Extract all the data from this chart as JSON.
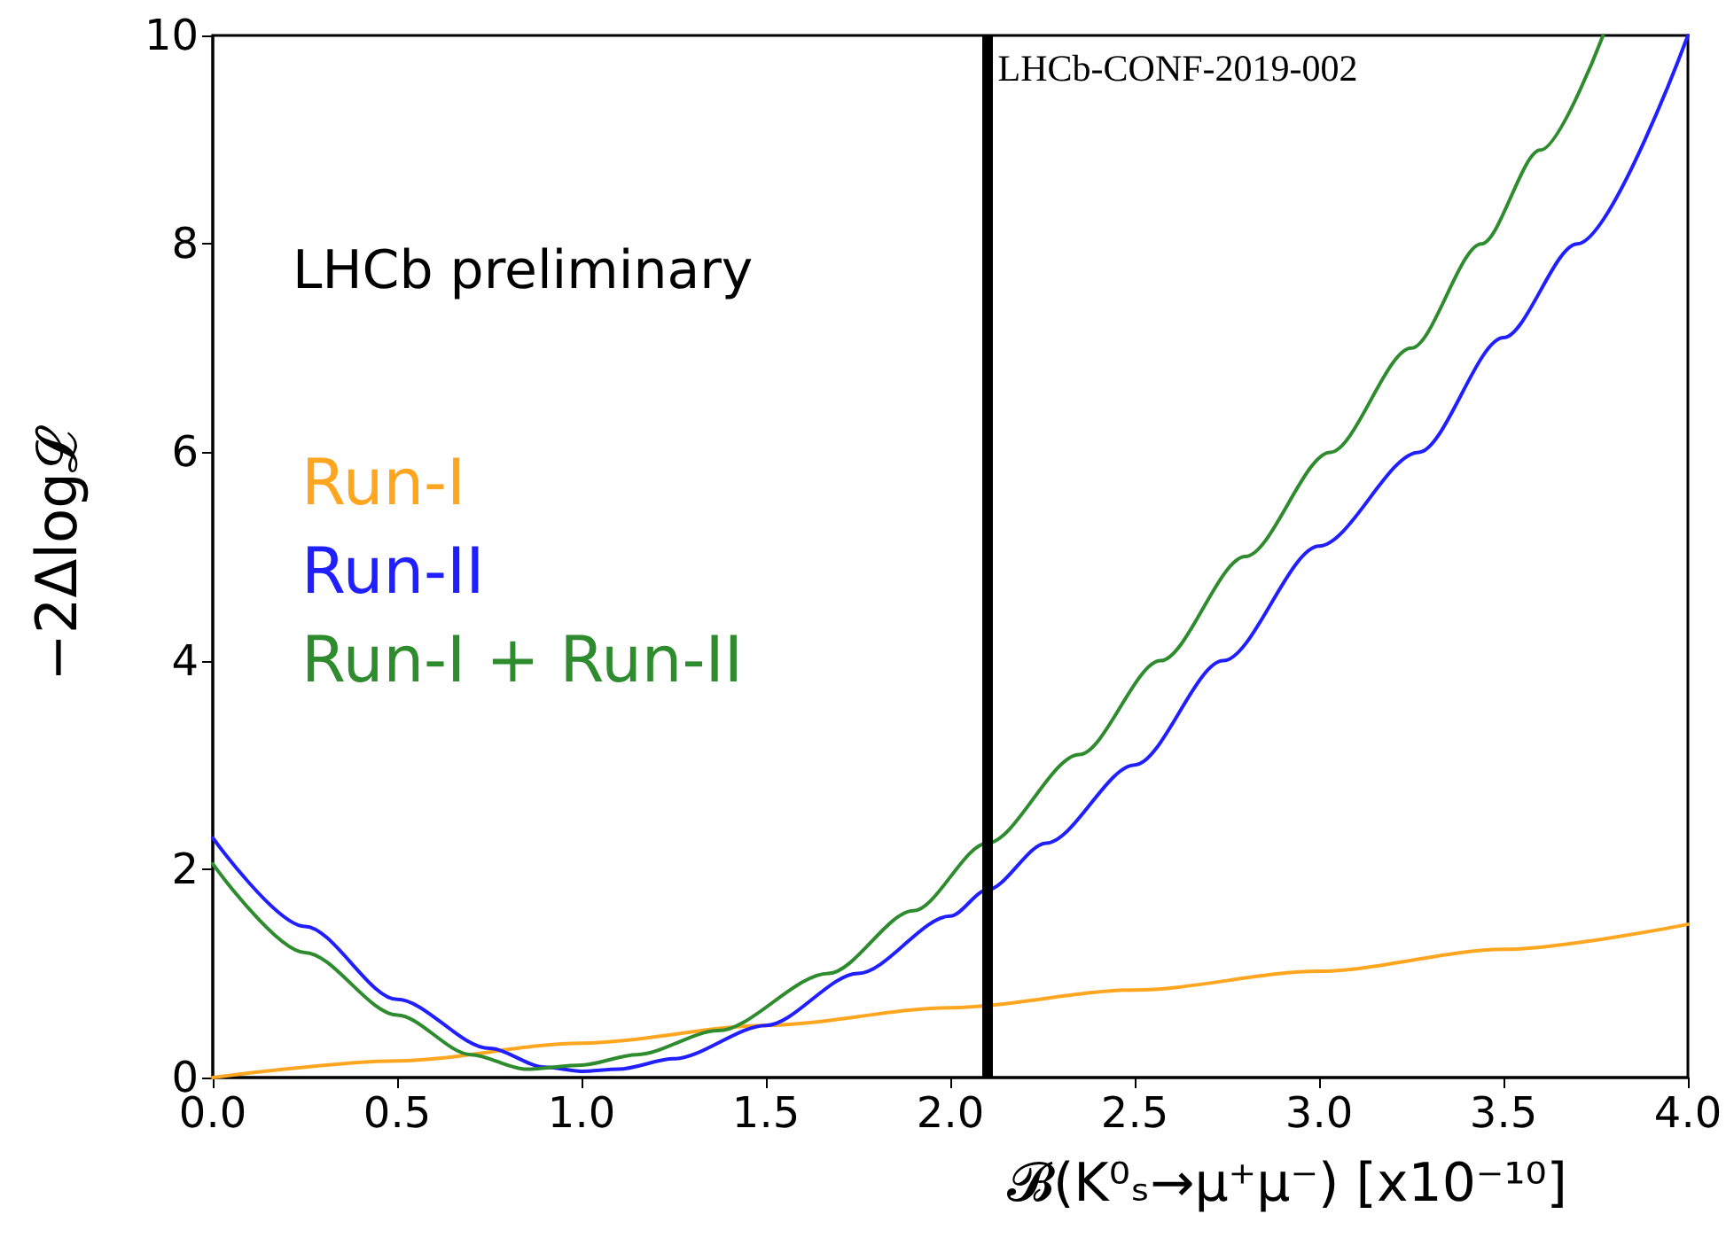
{
  "chart_data": {
    "type": "line",
    "xlabel": "𝓑(K⁰ₛ→μ⁺μ⁻) [x10⁻¹⁰]",
    "ylabel": "−2Δlog𝓛",
    "xlim": [
      0,
      4
    ],
    "ylim": [
      0,
      10
    ],
    "xticks": [
      {
        "value": 0,
        "label": "0.0"
      },
      {
        "value": 0.5,
        "label": "0.5"
      },
      {
        "value": 1,
        "label": "1.0"
      },
      {
        "value": 1.5,
        "label": "1.5"
      },
      {
        "value": 2,
        "label": "2.0"
      },
      {
        "value": 2.5,
        "label": "2.5"
      },
      {
        "value": 3,
        "label": "3.0"
      },
      {
        "value": 3.5,
        "label": "3.5"
      },
      {
        "value": 4,
        "label": "4.0"
      }
    ],
    "yticks": [
      0,
      2,
      4,
      6,
      8,
      10
    ],
    "grid": false,
    "legend": "left",
    "marker": "none",
    "line_style": "solid",
    "annotations": [
      "LHCb preliminary"
    ],
    "ref_lines": [
      {
        "axis": "x",
        "value": 2.1,
        "label": "LHCb-CONF-2019-002",
        "color": "#000000"
      }
    ],
    "series": [
      {
        "name": "Run-I",
        "color": "#ffa621",
        "x": [
          0,
          0.5,
          1,
          1.5,
          2,
          2.5,
          3,
          3.5,
          4
        ],
        "values": [
          0,
          0.16,
          0.33,
          0.5,
          0.67,
          0.84,
          1.02,
          1.23,
          1.47
        ]
      },
      {
        "name": "Run-II",
        "color": "#1f1fff",
        "x": [
          0,
          0.25,
          0.5,
          0.75,
          0.9,
          1,
          1.1,
          1.25,
          1.5,
          1.75,
          2,
          2.1,
          2.26,
          2.5,
          2.74,
          3,
          3.27,
          3.5,
          3.7,
          4
        ],
        "values": [
          2.3,
          1.45,
          0.75,
          0.28,
          0.1,
          0.06,
          0.08,
          0.18,
          0.5,
          1.0,
          1.55,
          1.8,
          2.25,
          3.0,
          4.0,
          5.1,
          6.0,
          7.1,
          8.0,
          10
        ]
      },
      {
        "name": "Run-I + Run-II",
        "color": "#2e8b2e",
        "x": [
          0,
          0.25,
          0.5,
          0.7,
          0.85,
          1,
          1.15,
          1.37,
          1.67,
          1.9,
          2.1,
          2.35,
          2.57,
          2.8,
          3.03,
          3.25,
          3.44,
          3.6,
          3.77
        ],
        "values": [
          2.05,
          1.2,
          0.6,
          0.22,
          0.08,
          0.12,
          0.22,
          0.45,
          1.0,
          1.6,
          2.25,
          3.1,
          4.0,
          5.0,
          6.0,
          7.0,
          8.0,
          8.9,
          10
        ]
      }
    ]
  }
}
